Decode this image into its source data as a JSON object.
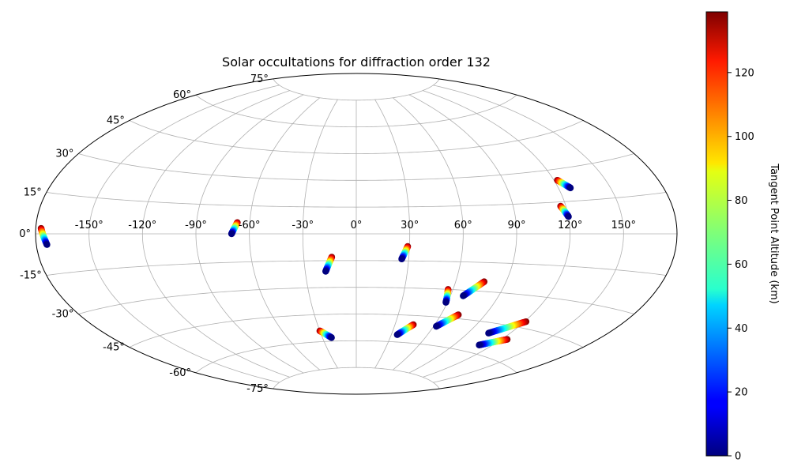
{
  "chart_data": {
    "type": "scatter",
    "projection": "aitoff",
    "title": "Solar occultations for diffraction order 132",
    "grid": true,
    "lon_ticks": [
      "-150°",
      "-120°",
      "-90°",
      "-60°",
      "-30°",
      "0°",
      "30°",
      "60°",
      "90°",
      "120°",
      "150°"
    ],
    "lat_ticks": [
      "75°",
      "60°",
      "45°",
      "30°",
      "15°",
      "0°",
      "-15°",
      "-30°",
      "-45°",
      "-60°",
      "-75°"
    ],
    "colorbar": {
      "label": "Tangent Point Altitude (km)",
      "colormap": "jet",
      "range": [
        0,
        139
      ],
      "ticks": [
        "0",
        "20",
        "40",
        "60",
        "80",
        "100",
        "120"
      ]
    },
    "occultations": [
      {
        "lon": [
          -177,
          -174
        ],
        "lat": [
          2,
          -4
        ],
        "altitude": [
          139,
          0
        ]
      },
      {
        "lon": [
          -67,
          -70
        ],
        "lat": [
          6,
          0
        ],
        "altitude": [
          139,
          0
        ]
      },
      {
        "lon": [
          -14,
          -18
        ],
        "lat": [
          -13,
          -21
        ],
        "altitude": [
          139,
          0
        ]
      },
      {
        "lon": [
          29,
          26
        ],
        "lat": [
          -7,
          -14
        ],
        "altitude": [
          139,
          0
        ]
      },
      {
        "lon": [
          -30,
          -22
        ],
        "lat": [
          -54,
          -58
        ],
        "altitude": [
          139,
          0
        ]
      },
      {
        "lon": [
          44,
          35
        ],
        "lat": [
          -50,
          -56
        ],
        "altitude": [
          139,
          0
        ]
      },
      {
        "lon": [
          57,
          59
        ],
        "lat": [
          -30,
          -37
        ],
        "altitude": [
          139,
          0
        ]
      },
      {
        "lon": [
          77,
          68
        ],
        "lat": [
          -25,
          -33
        ],
        "altitude": [
          139,
          0
        ]
      },
      {
        "lon": [
          72,
          62
        ],
        "lat": [
          -43,
          -50
        ],
        "altitude": [
          139,
          0
        ]
      },
      {
        "lon": [
          121,
          105
        ],
        "lat": [
          -42,
          -50
        ],
        "altitude": [
          139,
          0
        ]
      },
      {
        "lon": [
          124,
          110
        ],
        "lat": [
          -51,
          -56
        ],
        "altitude": [
          139,
          0
        ]
      },
      {
        "lon": [
          117,
          120
        ],
        "lat": [
          13,
          8
        ],
        "altitude": [
          139,
          0
        ]
      },
      {
        "lon": [
          122,
          127
        ],
        "lat": [
          25,
          21
        ],
        "altitude": [
          139,
          0
        ]
      }
    ]
  }
}
